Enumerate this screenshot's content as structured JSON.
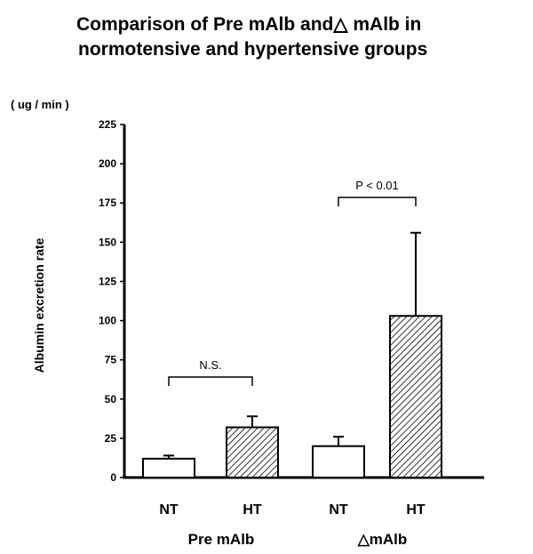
{
  "title_line1": "Comparison  of  Pre mAlb and△ mAlb in",
  "title_line2": "normotensive  and  hypertensive groups",
  "chart_data": {
    "type": "bar",
    "title": "Comparison of Pre mAlb and △ mAlb in normotensive and hypertensive groups",
    "ylabel": "Albumin excretion rate",
    "unit": "( ug / min )",
    "ylim": [
      0,
      225
    ],
    "yticks": [
      0,
      25,
      50,
      75,
      100,
      125,
      150,
      175,
      200,
      225
    ],
    "groups": [
      {
        "name": "Pre  mAlb",
        "categories": [
          "NT",
          "HT"
        ],
        "values": [
          12,
          32
        ],
        "errors": [
          2,
          7
        ],
        "fills": [
          "white",
          "hatched"
        ],
        "comparison": "N.S."
      },
      {
        "name": "△mAlb",
        "categories": [
          "NT",
          "HT"
        ],
        "values": [
          20,
          103
        ],
        "errors": [
          6,
          53
        ],
        "fills": [
          "white",
          "hatched"
        ],
        "comparison": "P < 0.01"
      }
    ]
  }
}
